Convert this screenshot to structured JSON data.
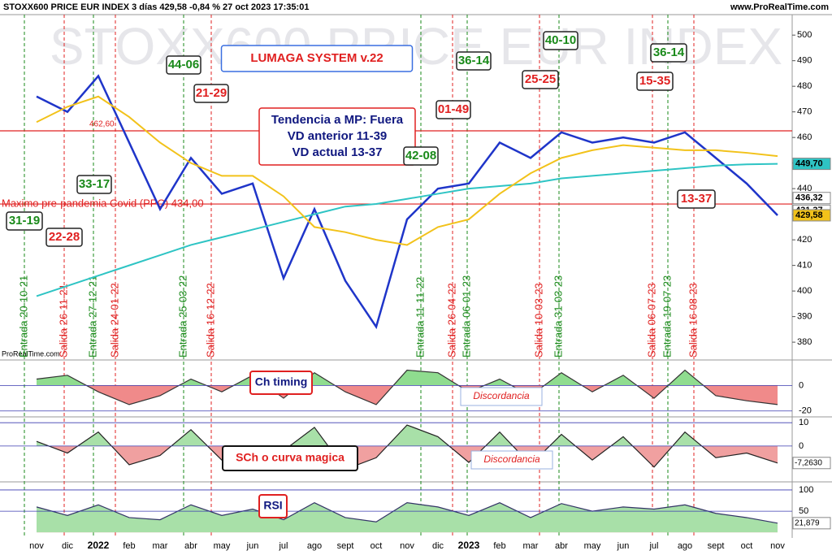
{
  "header": {
    "title": "STOXX600 PRICE EUR INDEX 3 días 429,58 -0,84 % 27 oct 2023 17:35:01",
    "site": "www.ProRealTime.com",
    "watermark": "STOXX600 PRICE EUR INDEX",
    "credit": "ProRealTime.com"
  },
  "chart_data": [
    {
      "type": "line",
      "x": [
        "nov",
        "dic",
        "2022",
        "feb",
        "mar",
        "abr",
        "may",
        "jun",
        "jul",
        "ago",
        "sept",
        "oct",
        "nov",
        "dic",
        "2023",
        "feb",
        "mar",
        "abr",
        "may",
        "jun",
        "jul",
        "ago",
        "sept",
        "oct",
        "nov"
      ],
      "series": [
        {
          "color": "#1f35c9",
          "values": [
            476,
            470,
            484,
            458,
            432,
            452,
            438,
            442,
            405,
            432,
            404,
            386,
            428,
            440,
            442,
            458,
            452,
            462,
            458,
            460,
            458,
            462,
            452,
            442,
            429.58
          ]
        },
        {
          "color": "#2ec4c4",
          "values": [
            398,
            402,
            406,
            410,
            414,
            418,
            421,
            424,
            427,
            430,
            433,
            434,
            436,
            438,
            440,
            441,
            442,
            444,
            445,
            446,
            447,
            448,
            449,
            449.5,
            449.7
          ]
        },
        {
          "color": "#f2c21a",
          "values": [
            466,
            472,
            476,
            468,
            458,
            450,
            445,
            445,
            437,
            425,
            423,
            420,
            418,
            425,
            428,
            438,
            446,
            452,
            455,
            457,
            456,
            455,
            455,
            454,
            452.7
          ]
        }
      ],
      "ylim": [
        374,
        508
      ],
      "yticks": [
        380,
        390,
        400,
        410,
        420,
        430,
        440,
        450,
        460,
        470,
        480,
        490,
        500
      ],
      "levels": [
        {
          "value": 462.6,
          "label": "462,60",
          "color": "#e02020"
        },
        {
          "value": 434,
          "label": "Maximo pre-pandemia Covid (PPC)  434,00",
          "color": "#e02020"
        }
      ],
      "price_tags": [
        {
          "value": 449.7,
          "label": "449,70",
          "color": "#2ec4c4"
        },
        {
          "value": 436.32,
          "label": "436,32",
          "color": "#ffffff"
        },
        {
          "value": 431.37,
          "label": "431,37",
          "color": "#ffffff"
        },
        {
          "value": 429.58,
          "label": "429,58",
          "color": "#f2c21a"
        }
      ],
      "signals": [
        {
          "label": "Entrada 20-10-21",
          "color": "#1a8a1a"
        },
        {
          "label": "Salida 26-11-21",
          "color": "#e02020"
        },
        {
          "label": "Entrada 27-12-21",
          "color": "#1a8a1a"
        },
        {
          "label": "Salida 24-01-22",
          "color": "#e02020"
        },
        {
          "label": "Entrada 25-03-22",
          "color": "#1a8a1a"
        },
        {
          "label": "Salida 16-12-22",
          "color": "#e02020"
        },
        {
          "label": "Entrada 11-11-22",
          "color": "#1a8a1a"
        },
        {
          "label": "Salida 26-04-22",
          "color": "#e02020"
        },
        {
          "label": "Entrada 06-01-23",
          "color": "#1a8a1a"
        },
        {
          "label": "Salida 10-03-23",
          "color": "#e02020"
        },
        {
          "label": "Entrada 31-03-23",
          "color": "#1a8a1a"
        },
        {
          "label": "Salida 06-07-23",
          "color": "#e02020"
        },
        {
          "label": "Entrada 19-07-23",
          "color": "#1a8a1a"
        },
        {
          "label": "Salida 16-08-23",
          "color": "#e02020"
        }
      ],
      "annotations": [
        {
          "lines": [
            "LUMAGA SYSTEM v.22"
          ],
          "color": "#e02020",
          "border": "#3a6fe0"
        },
        {
          "lines": [
            "44-06"
          ],
          "color": "#1a8a1a",
          "border": "#222222"
        },
        {
          "lines": [
            "21-29"
          ],
          "color": "#e02020",
          "border": "#222222"
        },
        {
          "lines": [
            "33-17"
          ],
          "color": "#1a8a1a",
          "border": "#222222"
        },
        {
          "lines": [
            "31-19"
          ],
          "color": "#1a8a1a",
          "border": "#222222"
        },
        {
          "lines": [
            "22-28"
          ],
          "color": "#e02020",
          "border": "#222222"
        },
        {
          "lines": [
            "Tendencia a MP: Fuera",
            "VD anterior 11-39",
            "VD actual 13-37"
          ],
          "color": "#101880",
          "border": "#e02020"
        },
        {
          "lines": [
            "01-49"
          ],
          "color": "#e02020",
          "border": "#222222"
        },
        {
          "lines": [
            "36-14"
          ],
          "color": "#1a8a1a",
          "border": "#222222"
        },
        {
          "lines": [
            "42-08"
          ],
          "color": "#1a8a1a",
          "border": "#222222"
        },
        {
          "lines": [
            "40-10"
          ],
          "color": "#1a8a1a",
          "border": "#222222"
        },
        {
          "lines": [
            "25-25"
          ],
          "color": "#e02020",
          "border": "#222222"
        },
        {
          "lines": [
            "36-14"
          ],
          "color": "#1a8a1a",
          "border": "#222222"
        },
        {
          "lines": [
            "15-35"
          ],
          "color": "#e02020",
          "border": "#222222"
        },
        {
          "lines": [
            "13-37"
          ],
          "color": "#e02020",
          "border": "#222222"
        }
      ]
    },
    {
      "type": "area",
      "title": "Ch timing",
      "note": "Discordancia",
      "color": "#333333",
      "fill_colors": [
        "#8fdc8f",
        "#f08a8a"
      ],
      "values": [
        5,
        8,
        -5,
        -15,
        -8,
        5,
        -5,
        8,
        -10,
        10,
        -5,
        -15,
        12,
        10,
        -5,
        5,
        -8,
        10,
        -5,
        8,
        -10,
        12,
        -8,
        -12,
        -15
      ],
      "ylim": [
        -24,
        20
      ],
      "yticks": [
        0,
        -20
      ]
    },
    {
      "type": "area",
      "title": "SCh o curva magica",
      "note": "Discordancia",
      "color": "#222222",
      "fill_colors": [
        "#a8e0a8",
        "#f0a0a0"
      ],
      "values": [
        2,
        -3,
        6,
        -8,
        -4,
        7,
        -6,
        -9,
        -2,
        8,
        -10,
        -5,
        9,
        4,
        -7,
        6,
        -8,
        5,
        -6,
        4,
        -9,
        6,
        -5,
        -3,
        -7.263
      ],
      "ylim": [
        -15,
        12.5
      ],
      "yticks": [
        10,
        0
      ],
      "last_tag": {
        "value": -7.263,
        "label": "-7,2630"
      }
    },
    {
      "type": "area",
      "title": "RSI",
      "color": "#333366",
      "fill_colors": [
        "#a8e0a8",
        "#f0a0a0"
      ],
      "values": [
        60,
        40,
        65,
        35,
        30,
        65,
        40,
        55,
        30,
        70,
        35,
        25,
        70,
        60,
        40,
        70,
        35,
        68,
        50,
        60,
        55,
        65,
        45,
        35,
        21.879
      ],
      "ylim": [
        -9,
        119
      ],
      "yticks": [
        100,
        50
      ],
      "last_tag": {
        "value": 21.879,
        "label": "21,879"
      }
    }
  ]
}
